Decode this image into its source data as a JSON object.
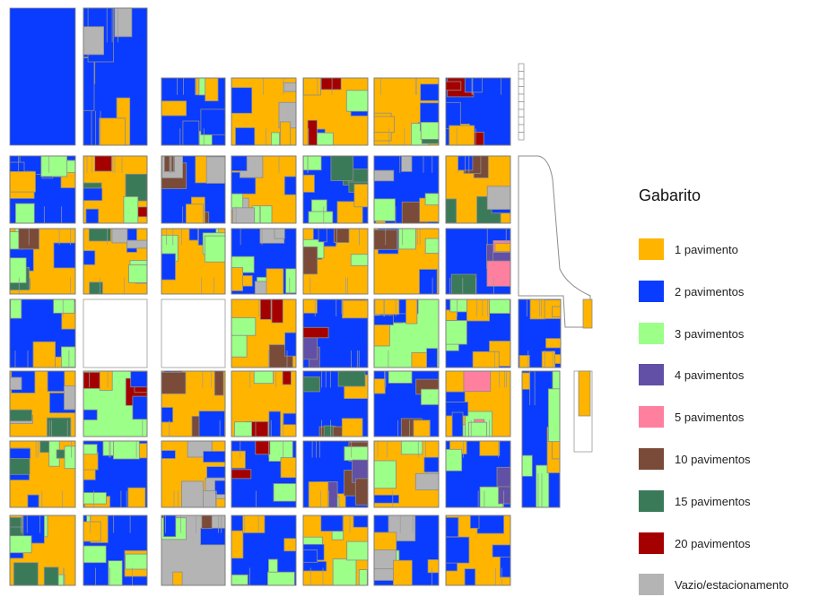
{
  "legend": {
    "title": "Gabarito",
    "items": [
      {
        "key": "p1",
        "label": "1 pavimento",
        "color": "#ffb400"
      },
      {
        "key": "p2",
        "label": "2 pavimentos",
        "color": "#0a3cff"
      },
      {
        "key": "p3",
        "label": "3 pavimentos",
        "color": "#9cff88"
      },
      {
        "key": "p4",
        "label": "4 pavimentos",
        "color": "#6150a6"
      },
      {
        "key": "p5",
        "label": "5 pavimentos",
        "color": "#ff7f9f"
      },
      {
        "key": "p10",
        "label": "10 pavimentos",
        "color": "#7a4b38"
      },
      {
        "key": "p15",
        "label": "15 pavimentos",
        "color": "#3b7a59"
      },
      {
        "key": "p20",
        "label": "20 pavimentos",
        "color": "#a50000"
      },
      {
        "key": "vz",
        "label": "Vazio/estacionamento",
        "color": "#b4b4b4"
      }
    ]
  },
  "blocks": [
    {
      "name": "block-a1",
      "fill": "p2"
    },
    {
      "name": "block-b1",
      "fill": "p2",
      "parts": [
        "p1",
        "p2",
        "p1",
        "vz"
      ]
    },
    {
      "name": "block-c2",
      "fill": "p2",
      "parts": [
        "p1",
        "p2",
        "p3"
      ]
    },
    {
      "name": "block-d2",
      "fill": "p1",
      "parts": [
        "p2",
        "vz",
        "p1",
        "p3"
      ]
    },
    {
      "name": "block-e2",
      "fill": "p1",
      "parts": [
        "p2",
        "p3",
        "p20",
        "p1"
      ]
    },
    {
      "name": "block-f2",
      "fill": "p1",
      "parts": [
        "p2",
        "p15",
        "p1",
        "p3"
      ]
    },
    {
      "name": "block-g2",
      "fill": "p2",
      "parts": [
        "p20",
        "p1",
        "p2"
      ]
    },
    {
      "name": "block-a3",
      "fill": "p2",
      "parts": [
        "p3",
        "p2",
        "p1"
      ]
    },
    {
      "name": "block-b3",
      "fill": "p1",
      "parts": [
        "p15",
        "p20",
        "p2",
        "p3"
      ]
    },
    {
      "name": "block-c3",
      "fill": "p2",
      "parts": [
        "p10",
        "p1",
        "vz"
      ]
    },
    {
      "name": "block-d3",
      "fill": "p1",
      "parts": [
        "p2",
        "vz",
        "p3"
      ]
    },
    {
      "name": "block-e3",
      "fill": "p2",
      "parts": [
        "p15",
        "p1",
        "p3"
      ]
    },
    {
      "name": "block-f3",
      "fill": "p2",
      "parts": [
        "vz",
        "p1",
        "p3",
        "p10"
      ]
    },
    {
      "name": "block-g3",
      "fill": "p1",
      "parts": [
        "p15",
        "p10",
        "p2",
        "vz"
      ]
    },
    {
      "name": "block-a4",
      "fill": "p1",
      "parts": [
        "p3",
        "p10",
        "p2",
        "p15"
      ]
    },
    {
      "name": "block-b4",
      "fill": "p1",
      "parts": [
        "vz",
        "p2",
        "p3",
        "p15"
      ]
    },
    {
      "name": "block-c4",
      "fill": "p1",
      "parts": [
        "p3",
        "p2"
      ]
    },
    {
      "name": "block-d4",
      "fill": "p2",
      "parts": [
        "p1",
        "p3",
        "vz"
      ]
    },
    {
      "name": "block-e4",
      "fill": "p1",
      "parts": [
        "p10",
        "p2",
        "p3"
      ]
    },
    {
      "name": "block-f4",
      "fill": "p1",
      "parts": [
        "p3",
        "p2",
        "p10"
      ]
    },
    {
      "name": "block-g4",
      "fill": "p2",
      "parts": [
        "p4",
        "p5",
        "p15",
        "p1"
      ]
    },
    {
      "name": "block-a5",
      "fill": "p2",
      "parts": [
        "p1",
        "p3"
      ]
    },
    {
      "name": "block-b5",
      "fill": "empty"
    },
    {
      "name": "block-c5",
      "fill": "empty"
    },
    {
      "name": "block-d5",
      "fill": "p1",
      "parts": [
        "p20",
        "p3",
        "p10",
        "p2"
      ]
    },
    {
      "name": "block-e5",
      "fill": "p2",
      "parts": [
        "p4",
        "p20",
        "p1"
      ]
    },
    {
      "name": "block-f5",
      "fill": "p3",
      "parts": [
        "p2",
        "p1"
      ]
    },
    {
      "name": "block-g5",
      "fill": "p2",
      "parts": [
        "p3",
        "p1"
      ]
    },
    {
      "name": "block-a6",
      "fill": "p1",
      "parts": [
        "p15",
        "p2",
        "vz"
      ]
    },
    {
      "name": "block-b6",
      "fill": "p3",
      "parts": [
        "p20",
        "p2",
        "p1"
      ]
    },
    {
      "name": "block-c6",
      "fill": "p1",
      "parts": [
        "p10",
        "p2"
      ]
    },
    {
      "name": "block-d6",
      "fill": "p1",
      "parts": [
        "p2",
        "p20",
        "p3"
      ]
    },
    {
      "name": "block-e6",
      "fill": "p2",
      "parts": [
        "p15",
        "p10",
        "p1"
      ]
    },
    {
      "name": "block-f6",
      "fill": "p2",
      "parts": [
        "p10",
        "p3",
        "p1"
      ]
    },
    {
      "name": "block-g6",
      "fill": "p1",
      "parts": [
        "p5",
        "p3",
        "p2"
      ]
    },
    {
      "name": "block-a7",
      "fill": "p1",
      "parts": [
        "p15",
        "p2",
        "p3"
      ]
    },
    {
      "name": "block-b7",
      "fill": "p2",
      "parts": [
        "p1",
        "p3"
      ]
    },
    {
      "name": "block-c7",
      "fill": "p1",
      "parts": [
        "p2",
        "vz"
      ]
    },
    {
      "name": "block-d7",
      "fill": "p2",
      "parts": [
        "p20",
        "p1",
        "p3"
      ]
    },
    {
      "name": "block-e7",
      "fill": "p2",
      "parts": [
        "p10",
        "p1",
        "p3",
        "p4"
      ]
    },
    {
      "name": "block-f7",
      "fill": "p1",
      "parts": [
        "p2",
        "p3",
        "vz"
      ]
    },
    {
      "name": "block-g7",
      "fill": "p2",
      "parts": [
        "p4",
        "p1",
        "p3"
      ]
    },
    {
      "name": "block-a8",
      "fill": "p1",
      "parts": [
        "p15",
        "p2",
        "p3"
      ]
    },
    {
      "name": "block-b8",
      "fill": "p2",
      "parts": [
        "p1",
        "p3"
      ]
    },
    {
      "name": "block-c8",
      "fill": "vz",
      "parts": [
        "p10",
        "p2",
        "p1",
        "p3"
      ]
    },
    {
      "name": "block-d8",
      "fill": "p2",
      "parts": [
        "p1",
        "p3"
      ]
    },
    {
      "name": "block-e8",
      "fill": "p1",
      "parts": [
        "p2",
        "p3"
      ]
    },
    {
      "name": "block-f8",
      "fill": "p2",
      "parts": [
        "vz",
        "p1",
        "p3"
      ]
    },
    {
      "name": "block-g8",
      "fill": "p1",
      "parts": [
        "p2"
      ]
    },
    {
      "name": "block-h-strip",
      "fill": "empty"
    },
    {
      "name": "block-h-curve",
      "fill": "empty"
    },
    {
      "name": "block-h5",
      "fill": "p2",
      "parts": [
        "p1"
      ]
    },
    {
      "name": "block-h6",
      "fill": "p2",
      "parts": [
        "p3",
        "p1"
      ]
    }
  ]
}
